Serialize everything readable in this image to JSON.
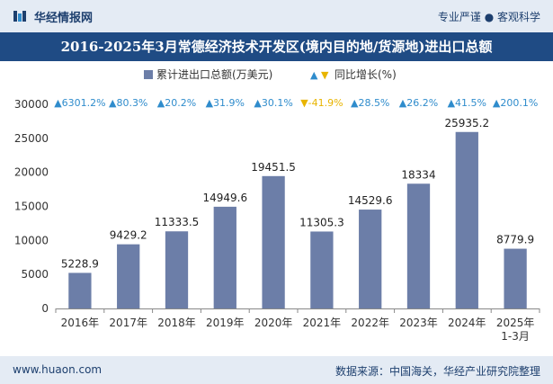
{
  "header": {
    "brand": "华经情报网",
    "tagline": "专业严谨 ● 客观科学"
  },
  "title": "2016-2025年3月常德经济技术开发区(境内目的地/货源地)进出口总额",
  "colors": {
    "bar": "#6c7ea8",
    "up": "#2f8ccc",
    "down": "#e8b400",
    "header_bg": "#e4ebf4",
    "title_bg": "#1f4b84",
    "text": "#1d3f6e"
  },
  "chart_data": {
    "type": "bar",
    "title": "2016-2025年3月常德经济技术开发区(境内目的地/货源地)进出口总额",
    "categories": [
      "2016年",
      "2017年",
      "2018年",
      "2019年",
      "2020年",
      "2021年",
      "2022年",
      "2023年",
      "2024年",
      "2025年\n1-3月"
    ],
    "series": [
      {
        "name": "累计进出口总额(万美元)",
        "values": [
          5228.9,
          9429.2,
          11333.5,
          14949.6,
          19451.5,
          11305.3,
          14529.6,
          18334,
          25935.2,
          8779.9
        ]
      }
    ],
    "value_labels": [
      "5228.9",
      "9429.2",
      "11333.5",
      "14949.6",
      "19451.5",
      "11305.3",
      "14529.6",
      "18334",
      "25935.2",
      "8779.9"
    ],
    "growth": {
      "name": "同比增长(%)",
      "labels": [
        "6301.2%",
        "80.3%",
        "20.2%",
        "31.9%",
        "30.1%",
        "-41.9%",
        "28.5%",
        "26.2%",
        "41.5%",
        "200.1%"
      ],
      "values": [
        6301.2,
        80.3,
        20.2,
        31.9,
        30.1,
        -41.9,
        28.5,
        26.2,
        41.5,
        200.1
      ],
      "markers": [
        "▲",
        "▲",
        "▲",
        "▲",
        "▲",
        "▼",
        "▲",
        "▲",
        "▲",
        "▲"
      ]
    },
    "legend": {
      "bar_label": "累计进出口总额(万美元)",
      "growth_label": "同比增长(%)",
      "position": "top"
    },
    "yticks": [
      0,
      5000,
      10000,
      15000,
      20000,
      25000,
      30000
    ],
    "ylim": [
      0,
      30000
    ]
  },
  "footer": {
    "url": "www.huaon.com",
    "source": "数据来源：中国海关，华经产业研究院整理"
  }
}
